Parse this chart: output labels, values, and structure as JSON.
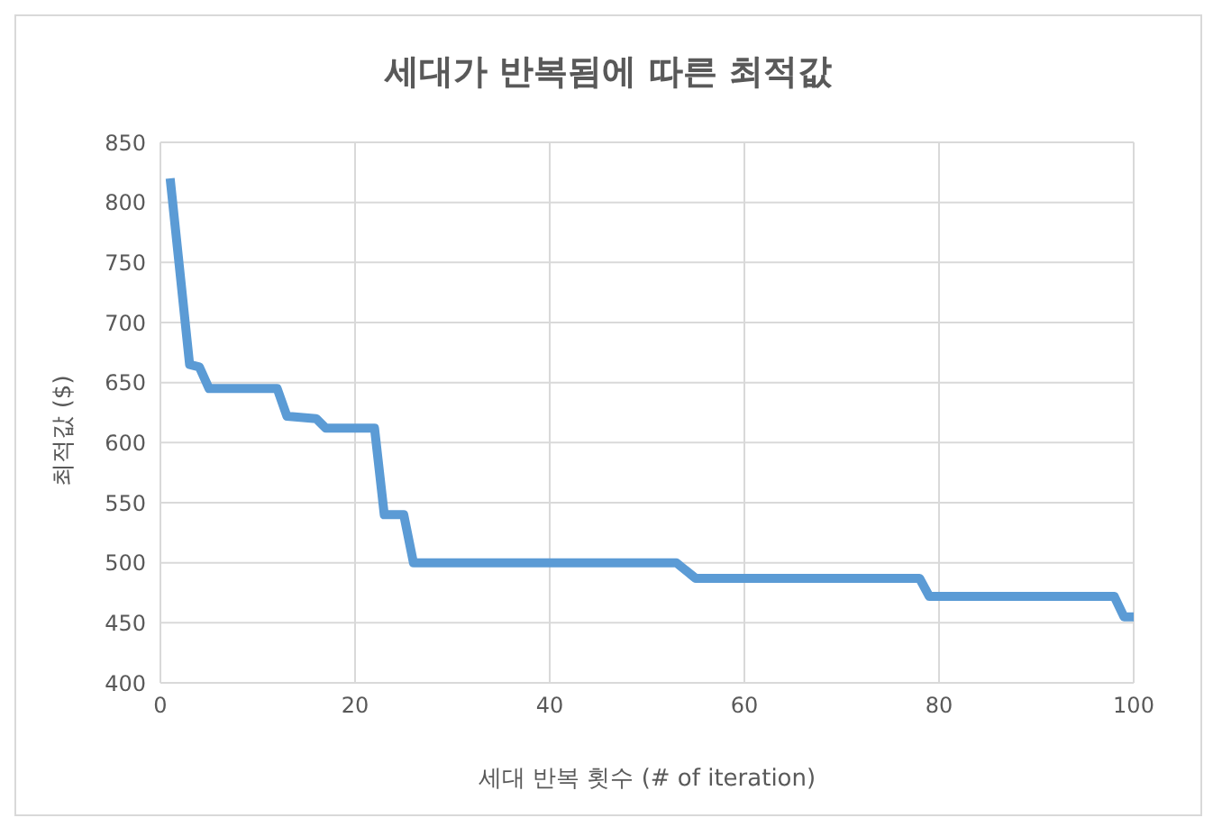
{
  "chart_data": {
    "type": "line",
    "title": "세대가 반복됨에 따른 최적값",
    "xlabel": "세대 반복 횟수 (# of iteration)",
    "ylabel": "최적값 ($)",
    "x": [
      1,
      3,
      4,
      5,
      12,
      13,
      16,
      17,
      22,
      23,
      25,
      26,
      53,
      55,
      78,
      79,
      98,
      99,
      100
    ],
    "series": [
      {
        "color": "#5b9bd5",
        "values": [
          820,
          665,
          663,
          645,
          645,
          622,
          620,
          612,
          612,
          540,
          540,
          500,
          500,
          487,
          487,
          472,
          472,
          455,
          455
        ]
      }
    ],
    "xlim": [
      0,
      100
    ],
    "xticks": [
      0,
      20,
      40,
      60,
      80,
      100
    ],
    "ylim": [
      400,
      850
    ],
    "yticks": [
      400,
      450,
      500,
      550,
      600,
      650,
      700,
      750,
      800,
      850
    ],
    "grid": true,
    "legend": false,
    "marker": "none",
    "line_style": "solid"
  }
}
